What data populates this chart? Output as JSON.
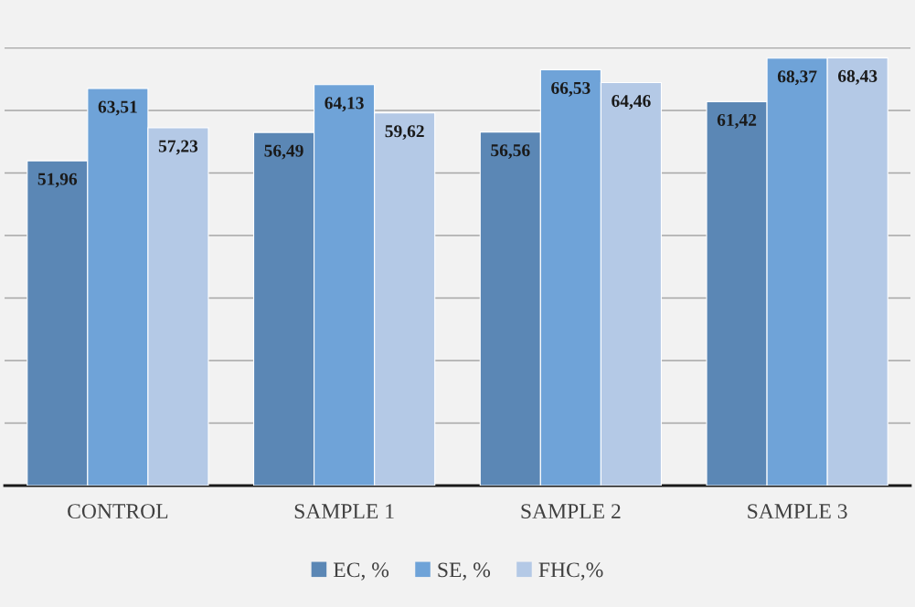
{
  "chart_data": {
    "type": "bar",
    "categories": [
      "CONTROL",
      "SAMPLE 1",
      "SAMPLE 2",
      "SAMPLE 3"
    ],
    "series": [
      {
        "name": "EC, %",
        "color": "#5b87b5",
        "values": [
          51.96,
          56.49,
          56.56,
          61.42
        ],
        "value_labels": [
          "51,96",
          "56,49",
          "56,56",
          "61,42"
        ]
      },
      {
        "name": "SE, %",
        "color": "#6fa3d8",
        "values": [
          63.51,
          64.13,
          66.53,
          68.37
        ],
        "value_labels": [
          "63,51",
          "64,13",
          "66,53",
          "68,37"
        ]
      },
      {
        "name": "FHC,%",
        "color": "#b4c9e6",
        "values": [
          57.23,
          59.62,
          64.46,
          68.43
        ],
        "value_labels": [
          "57,23",
          "59,62",
          "64,46",
          "68,43"
        ]
      }
    ],
    "tick_labels": "x",
    "grid": "y",
    "legend": "bottom"
  }
}
